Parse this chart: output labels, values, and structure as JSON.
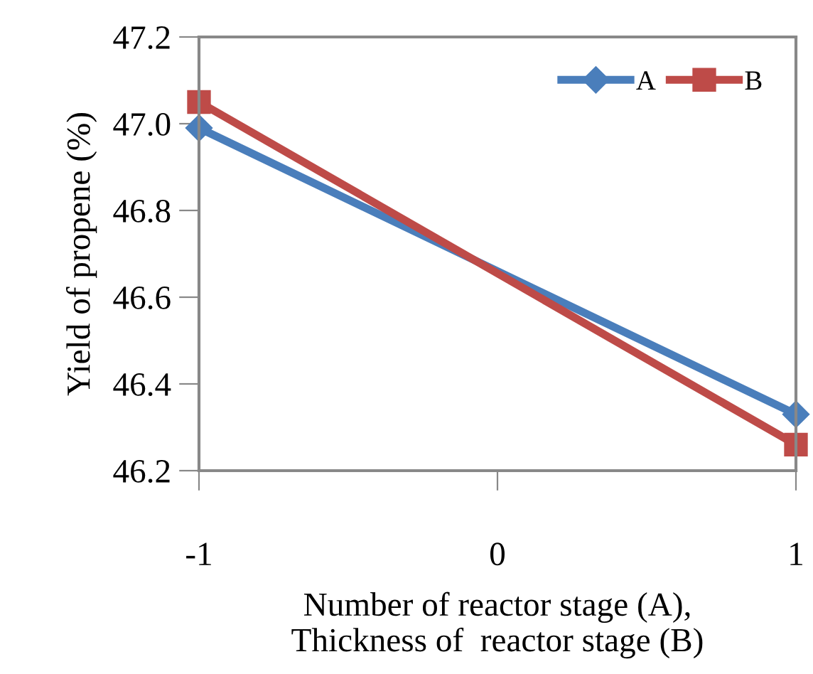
{
  "chart_data": {
    "type": "line",
    "xlabel": "Number of reactor stage (A),\nThickness of  reactor stage (B)",
    "ylabel": "Yield of propene (%)",
    "x": [
      -1,
      1
    ],
    "series": [
      {
        "name": "A",
        "color": "#4a7ebb",
        "values": [
          46.99,
          46.33
        ],
        "marker": "diamond"
      },
      {
        "name": "B",
        "color": "#be4b48",
        "values": [
          47.05,
          46.26
        ],
        "marker": "square"
      }
    ],
    "xlim": [
      -1,
      1
    ],
    "xticks": [
      -1,
      0,
      1
    ],
    "ylim": [
      46.2,
      47.2
    ],
    "yticks": [
      {
        "value": 46.2,
        "label": "46.2"
      },
      {
        "value": 46.4,
        "label": "46.4"
      },
      {
        "value": 46.6,
        "label": "46.6"
      },
      {
        "value": 46.8,
        "label": "46.8"
      },
      {
        "value": 47.0,
        "label": "47.0"
      },
      {
        "value": 47.2,
        "label": "47.2"
      }
    ],
    "grid": false,
    "legend": "top right",
    "line_style": "solid"
  }
}
